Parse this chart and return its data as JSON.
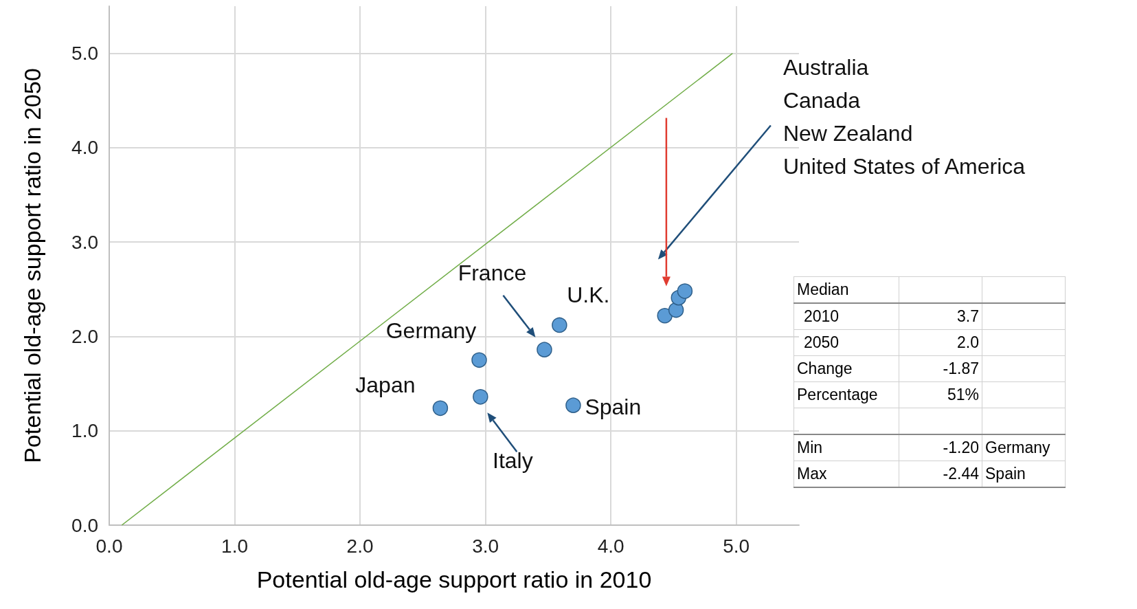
{
  "chart_data": {
    "type": "scatter",
    "xlabel": "Potential old-age support ratio in 2010",
    "ylabel": "Potential old-age support ratio in 2050",
    "xlim": [
      0,
      5.5
    ],
    "ylim": [
      0,
      5.5
    ],
    "xticks": [
      {
        "value": 0,
        "label": "0.0"
      },
      {
        "value": 1,
        "label": "1.0"
      },
      {
        "value": 2,
        "label": "2.0"
      },
      {
        "value": 3,
        "label": "3.0"
      },
      {
        "value": 4,
        "label": "4.0"
      },
      {
        "value": 5,
        "label": "5.0"
      }
    ],
    "yticks": [
      {
        "value": 0,
        "label": "0.0"
      },
      {
        "value": 1,
        "label": "1.0"
      },
      {
        "value": 2,
        "label": "2.0"
      },
      {
        "value": 3,
        "label": "3.0"
      },
      {
        "value": 4,
        "label": "4.0"
      },
      {
        "value": 5,
        "label": "5.0"
      }
    ],
    "grid": true,
    "series": [
      {
        "color": "#5b9bd5",
        "x": [
          2.64,
          2.96,
          2.95,
          3.47,
          3.59,
          3.7,
          4.43,
          4.52,
          4.54,
          4.59
        ],
        "values": [
          1.24,
          1.36,
          1.75,
          1.86,
          2.12,
          1.27,
          2.22,
          2.28,
          2.41,
          2.48
        ]
      },
      {
        "type": "line",
        "color": "#70ad47",
        "x": [
          0.1,
          4.97
        ],
        "values": [
          0,
          5
        ]
      }
    ],
    "annotations": [
      {
        "text": "Japan",
        "x": 2.64,
        "y": 1.24
      },
      {
        "text": "Italy",
        "x": 2.96,
        "y": 1.36
      },
      {
        "text": "Germany",
        "x": 2.95,
        "y": 1.75
      },
      {
        "text": "U.K.",
        "x": 3.59,
        "y": 2.12
      },
      {
        "text": "Spain",
        "x": 3.7,
        "y": 1.27
      },
      "France",
      "Australia\nCanada\nNew Zealand\nUnited States of America",
      "Median",
      "2010",
      "3.7",
      "2050",
      "2.0",
      "Change",
      "-1.87",
      "Percentage",
      "51%",
      "Min",
      "-1.20",
      "Germany",
      "Max",
      "-2.44",
      "Spain"
    ]
  }
}
